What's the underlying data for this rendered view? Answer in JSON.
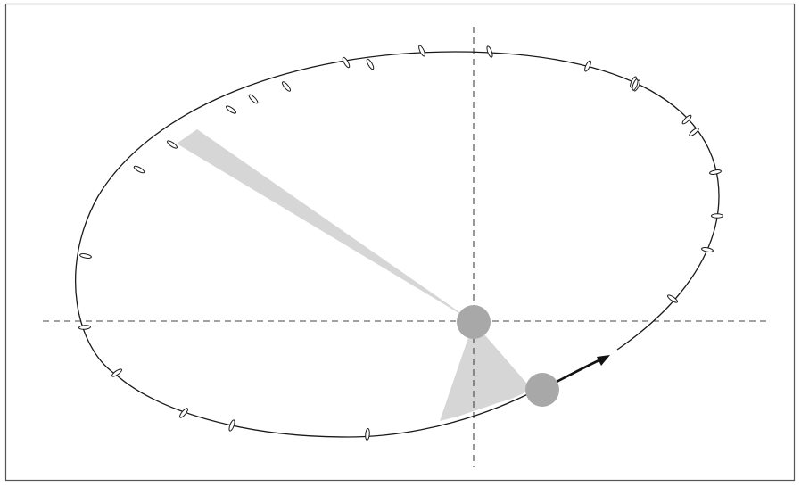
{
  "diagram": {
    "colors": {
      "background": "#ffffff",
      "frame": "#555555",
      "orbit": "#1a1a1a",
      "axes": "#444444",
      "swept_area": "#d6d6d6",
      "star": "#a8a8a8",
      "planet": "#a8a8a8",
      "direction_arrow": "#111111",
      "tick_marks": "#1a1a1a"
    },
    "elements": {
      "orbit": "elliptical-orbit",
      "axes": [
        "horizontal-dashed-axis",
        "vertical-dashed-axis"
      ],
      "focus_body": "central-star",
      "orbiting_body": "planet",
      "swept_areas": [
        "swept-area-far",
        "swept-area-near"
      ],
      "motion": "motion-arrow",
      "position_markers": "orbit-tick-marks"
    },
    "counts": {
      "tick_marks": 25,
      "swept_areas": 2
    }
  }
}
